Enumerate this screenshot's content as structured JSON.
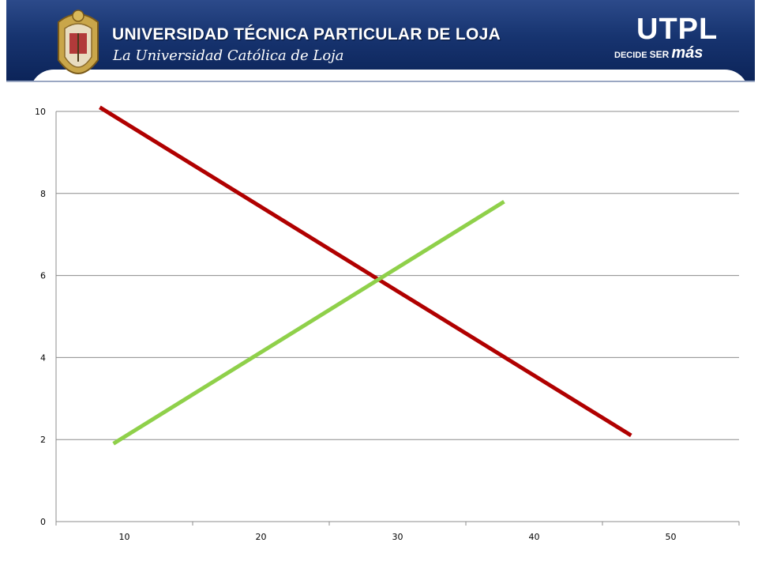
{
  "header": {
    "university_name": "UNIVERSIDAD TÉCNICA PARTICULAR DE LOJA",
    "tagline": "La Universidad Católica de Loja",
    "brand": "UTPL",
    "slogan_decide": "DECIDE",
    "slogan_ser": "SER",
    "slogan_mas": "más",
    "crest_icon": "university-crest-icon",
    "banner_color": "#173470"
  },
  "chart_data": {
    "type": "line",
    "title": "",
    "xlabel": "",
    "ylabel": "",
    "x_ticks": [
      10,
      20,
      30,
      40,
      50
    ],
    "y_ticks": [
      0,
      2,
      4,
      6,
      8,
      10
    ],
    "xlim": [
      5,
      55
    ],
    "ylim": [
      0,
      10
    ],
    "grid": "horizontal",
    "legend": "none",
    "series": [
      {
        "color": "#b00000",
        "points": [
          [
            8.2,
            10.1
          ],
          [
            47.1,
            2.1
          ]
        ]
      },
      {
        "color": "#8fd04a",
        "points": [
          [
            9.2,
            1.9
          ],
          [
            37.8,
            7.8
          ]
        ]
      }
    ]
  }
}
